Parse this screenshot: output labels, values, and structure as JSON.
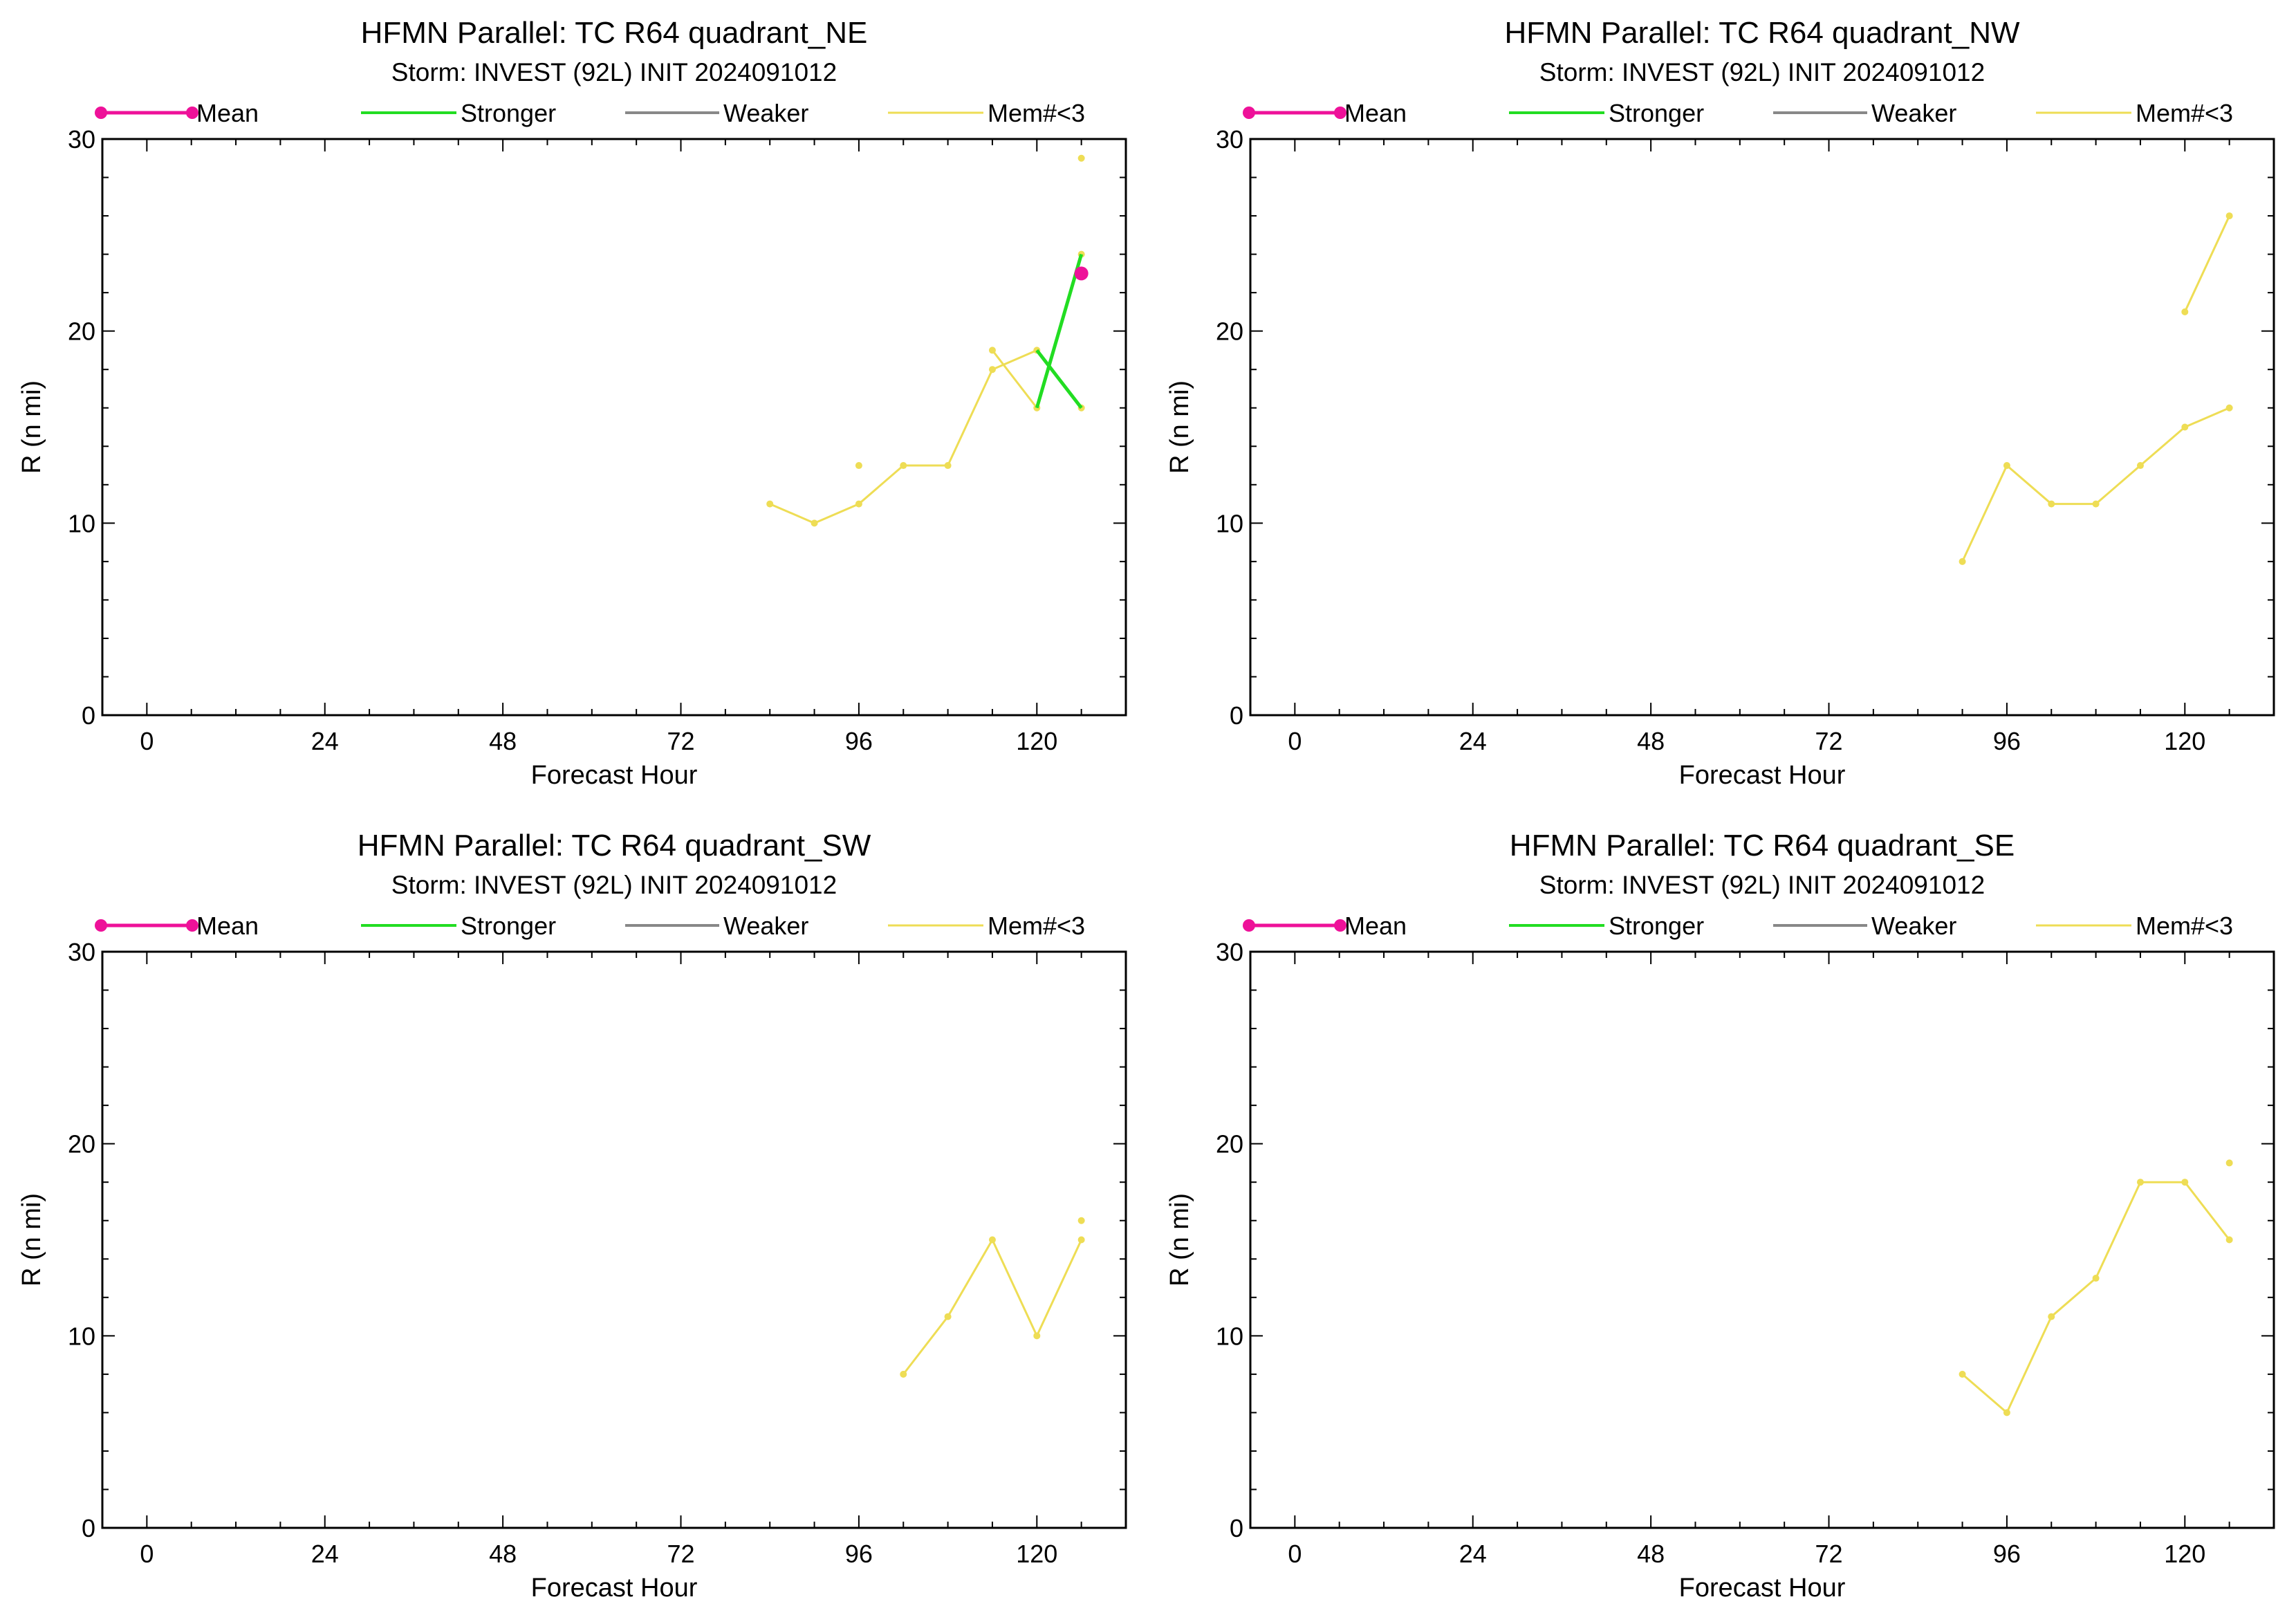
{
  "colors": {
    "mean": "#ee1199",
    "stronger": "#22dd22",
    "weaker": "#888888",
    "members": "#eedd55",
    "axes": "#000000"
  },
  "legend": {
    "mean": "Mean",
    "stronger": "Stronger",
    "weaker": "Weaker",
    "members": "Mem#<3"
  },
  "chart_data": [
    {
      "type": "line",
      "title": "HFMN Parallel: TC  R64 quadrant_NE",
      "subtitle": "Storm: INVEST (92L) INIT 2024091012",
      "xlabel": "Forecast Hour",
      "ylabel": "R (n mi)",
      "xlim": [
        -6,
        132
      ],
      "ylim": [
        0,
        30
      ],
      "xticks": [
        0,
        24,
        48,
        72,
        96,
        120
      ],
      "yticks": [
        0,
        10,
        20,
        30
      ],
      "mean": [
        {
          "x": 126,
          "y": 23
        }
      ],
      "stronger": [
        [
          {
            "x": 120,
            "y": 16
          },
          {
            "x": 126,
            "y": 24
          }
        ],
        [
          {
            "x": 120,
            "y": 19
          },
          {
            "x": 126,
            "y": 16
          }
        ]
      ],
      "weaker": [],
      "members": [
        [
          {
            "x": 84,
            "y": 11
          },
          {
            "x": 90,
            "y": 10
          },
          {
            "x": 96,
            "y": 11
          },
          {
            "x": 102,
            "y": 13
          },
          {
            "x": 108,
            "y": 13
          },
          {
            "x": 114,
            "y": 18
          },
          {
            "x": 120,
            "y": 19
          },
          {
            "x": 126,
            "y": 16
          }
        ],
        [
          {
            "x": 114,
            "y": 19
          },
          {
            "x": 120,
            "y": 16
          },
          {
            "x": 126,
            "y": 24
          }
        ],
        [
          {
            "x": 96,
            "y": 13
          }
        ],
        [
          {
            "x": 126,
            "y": 29
          }
        ]
      ]
    },
    {
      "type": "line",
      "title": "HFMN Parallel: TC  R64 quadrant_NW",
      "subtitle": "Storm: INVEST (92L) INIT 2024091012",
      "xlabel": "Forecast Hour",
      "ylabel": "R (n mi)",
      "xlim": [
        -6,
        132
      ],
      "ylim": [
        0,
        30
      ],
      "xticks": [
        0,
        24,
        48,
        72,
        96,
        120
      ],
      "yticks": [
        0,
        10,
        20,
        30
      ],
      "mean": [],
      "stronger": [],
      "weaker": [],
      "members": [
        [
          {
            "x": 90,
            "y": 8
          },
          {
            "x": 96,
            "y": 13
          },
          {
            "x": 102,
            "y": 11
          },
          {
            "x": 108,
            "y": 11
          },
          {
            "x": 114,
            "y": 13
          },
          {
            "x": 120,
            "y": 15
          },
          {
            "x": 126,
            "y": 16
          }
        ],
        [
          {
            "x": 120,
            "y": 21
          },
          {
            "x": 126,
            "y": 26
          }
        ]
      ]
    },
    {
      "type": "line",
      "title": "HFMN Parallel: TC  R64 quadrant_SW",
      "subtitle": "Storm: INVEST (92L) INIT 2024091012",
      "xlabel": "Forecast Hour",
      "ylabel": "R (n mi)",
      "xlim": [
        -6,
        132
      ],
      "ylim": [
        0,
        30
      ],
      "xticks": [
        0,
        24,
        48,
        72,
        96,
        120
      ],
      "yticks": [
        0,
        10,
        20,
        30
      ],
      "mean": [],
      "stronger": [],
      "weaker": [],
      "members": [
        [
          {
            "x": 102,
            "y": 8
          },
          {
            "x": 108,
            "y": 11
          },
          {
            "x": 114,
            "y": 15
          },
          {
            "x": 120,
            "y": 10
          },
          {
            "x": 126,
            "y": 15
          }
        ],
        [
          {
            "x": 126,
            "y": 16
          }
        ]
      ]
    },
    {
      "type": "line",
      "title": "HFMN Parallel: TC  R64 quadrant_SE",
      "subtitle": "Storm: INVEST (92L) INIT 2024091012",
      "xlabel": "Forecast Hour",
      "ylabel": "R (n mi)",
      "xlim": [
        -6,
        132
      ],
      "ylim": [
        0,
        30
      ],
      "xticks": [
        0,
        24,
        48,
        72,
        96,
        120
      ],
      "yticks": [
        0,
        10,
        20,
        30
      ],
      "mean": [],
      "stronger": [],
      "weaker": [],
      "members": [
        [
          {
            "x": 90,
            "y": 8
          },
          {
            "x": 96,
            "y": 6
          },
          {
            "x": 102,
            "y": 11
          },
          {
            "x": 108,
            "y": 13
          },
          {
            "x": 114,
            "y": 18
          },
          {
            "x": 120,
            "y": 18
          },
          {
            "x": 126,
            "y": 15
          }
        ],
        [
          {
            "x": 126,
            "y": 19
          }
        ]
      ]
    }
  ]
}
